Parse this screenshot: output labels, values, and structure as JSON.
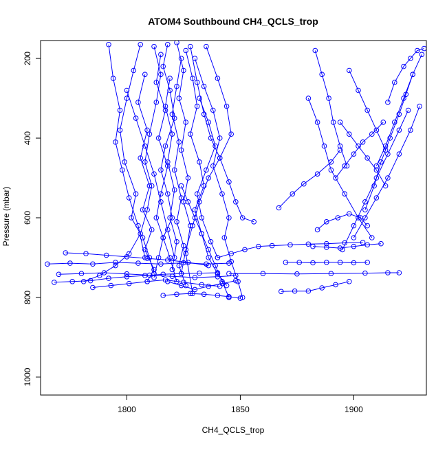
{
  "chart_data": {
    "type": "scatter",
    "title": "ATOM4 Southbound CH4_QCLS_trop",
    "xlabel": "CH4_QCLS_trop",
    "ylabel": "Pressure (mbar)",
    "xlim": [
      1762,
      1932
    ],
    "ylim": [
      1045,
      155
    ],
    "y_reversed": true,
    "x_ticks": [
      1800,
      1850,
      1900
    ],
    "y_ticks": [
      200,
      400,
      600,
      800,
      1000
    ],
    "grid": false,
    "legend": "none",
    "series_color": "#0000ff",
    "marker": "open-circle",
    "line": "connected",
    "series": [
      {
        "x": [
          1806,
          1803,
          1800,
          1797,
          1799,
          1804,
          1802,
          1807,
          1810,
          1812
        ],
        "y": [
          165,
          230,
          300,
          380,
          460,
          540,
          600,
          650,
          700,
          740
        ]
      },
      {
        "x": [
          1812,
          1815,
          1813,
          1810,
          1808,
          1811,
          1809,
          1806,
          1801,
          1795,
          1788,
          1781
        ],
        "y": [
          170,
          240,
          310,
          390,
          460,
          520,
          580,
          640,
          690,
          720,
          745,
          760
        ]
      },
      {
        "x": [
          1818,
          1816,
          1819,
          1821,
          1817,
          1815,
          1818,
          1820,
          1816,
          1819,
          1822
        ],
        "y": [
          165,
          220,
          280,
          350,
          420,
          480,
          540,
          600,
          650,
          700,
          760
        ]
      },
      {
        "x": [
          1822,
          1825,
          1823,
          1826,
          1824,
          1827,
          1825,
          1828,
          1826,
          1829
        ],
        "y": [
          160,
          230,
          300,
          360,
          430,
          500,
          560,
          620,
          690,
          790
        ]
      },
      {
        "x": [
          1826,
          1829,
          1831,
          1828,
          1832,
          1834,
          1830,
          1833,
          1836,
          1840,
          1844
        ],
        "y": [
          180,
          250,
          320,
          390,
          460,
          520,
          580,
          640,
          700,
          740,
          770
        ]
      },
      {
        "x": [
          1830,
          1834,
          1838,
          1841,
          1838,
          1842,
          1845,
          1843,
          1846,
          1849,
          1851
        ],
        "y": [
          200,
          270,
          330,
          400,
          470,
          540,
          600,
          650,
          710,
          760,
          800
        ]
      },
      {
        "x": [
          1835,
          1840,
          1844,
          1846,
          1841,
          1836,
          1832,
          1829,
          1826,
          1824
        ],
        "y": [
          170,
          250,
          320,
          390,
          450,
          500,
          560,
          620,
          680,
          740
        ]
      },
      {
        "x": [
          1815,
          1813,
          1817,
          1814,
          1818,
          1815,
          1813,
          1816,
          1814,
          1812
        ],
        "y": [
          190,
          260,
          330,
          400,
          470,
          540,
          600,
          650,
          700,
          750
        ]
      },
      {
        "x": [
          1824,
          1822,
          1820,
          1823,
          1821,
          1824,
          1822,
          1825,
          1823,
          1826
        ],
        "y": [
          200,
          270,
          340,
          410,
          480,
          550,
          610,
          670,
          720,
          770
        ]
      },
      {
        "x": [
          1808,
          1805,
          1809,
          1806,
          1810,
          1807,
          1811,
          1808,
          1812,
          1809
        ],
        "y": [
          240,
          310,
          380,
          450,
          520,
          580,
          630,
          680,
          730,
          760
        ]
      },
      {
        "x": [
          1792,
          1794,
          1797,
          1795,
          1798,
          1801,
          1805,
          1808
        ],
        "y": [
          165,
          250,
          330,
          410,
          480,
          550,
          620,
          700
        ]
      },
      {
        "x": [
          1828,
          1831,
          1834,
          1837,
          1841,
          1845,
          1848,
          1851,
          1856
        ],
        "y": [
          170,
          260,
          340,
          400,
          450,
          510,
          560,
          600,
          610
        ]
      },
      {
        "x": [
          1819,
          1817,
          1820,
          1818,
          1821,
          1819,
          1822,
          1820
        ],
        "y": [
          250,
          320,
          390,
          460,
          530,
          600,
          660,
          730
        ]
      },
      {
        "x": [
          1832,
          1836,
          1839,
          1835,
          1831,
          1833,
          1837,
          1840
        ],
        "y": [
          300,
          360,
          420,
          480,
          540,
          600,
          660,
          700
        ]
      },
      {
        "x": [
          1800,
          1804,
          1808,
          1812,
          1815,
          1818,
          1821
        ],
        "y": [
          280,
          350,
          420,
          490,
          560,
          630,
          700
        ]
      },
      {
        "x": [
          1824,
          1827,
          1830,
          1833,
          1836,
          1839,
          1842,
          1845
        ],
        "y": [
          520,
          560,
          600,
          640,
          680,
          720,
          760,
          800
        ]
      },
      {
        "x": [
          1765,
          1775,
          1785,
          1795,
          1805,
          1815,
          1825,
          1835,
          1845
        ],
        "y": [
          716,
          714,
          716,
          712,
          714,
          716,
          713,
          716,
          714
        ]
      },
      {
        "x": [
          1768,
          1776,
          1784,
          1792,
          1800,
          1808,
          1816,
          1824,
          1832,
          1840
        ],
        "y": [
          762,
          760,
          758,
          752,
          748,
          745,
          742,
          740,
          739,
          738
        ]
      },
      {
        "x": [
          1770,
          1780,
          1790,
          1800,
          1810,
          1820,
          1830,
          1840,
          1848
        ],
        "y": [
          742,
          740,
          738,
          741,
          744,
          747,
          750,
          748,
          745
        ]
      },
      {
        "x": [
          1773,
          1782,
          1791,
          1800,
          1809,
          1818,
          1827,
          1836
        ],
        "y": [
          688,
          690,
          694,
          698,
          702,
          706,
          712,
          720
        ]
      },
      {
        "x": [
          1785,
          1793,
          1801,
          1809,
          1817,
          1825,
          1833,
          1841
        ],
        "y": [
          775,
          770,
          765,
          760,
          756,
          762,
          768,
          772
        ]
      },
      {
        "x": [
          1816,
          1822,
          1828,
          1834,
          1840,
          1845,
          1850
        ],
        "y": [
          795,
          792,
          790,
          792,
          795,
          798,
          802
        ]
      },
      {
        "x": [
          1818,
          1824,
          1830,
          1836,
          1842,
          1848
        ],
        "y": [
          760,
          770,
          780,
          772,
          765,
          758
        ]
      },
      {
        "x": [
          1840,
          1846,
          1852,
          1858,
          1864,
          1872,
          1880,
          1888,
          1896,
          1904
        ],
        "y": [
          700,
          690,
          680,
          672,
          670,
          668,
          666,
          665,
          663,
          662
        ]
      },
      {
        "x": [
          1845,
          1860,
          1875,
          1890,
          1905,
          1915,
          1920
        ],
        "y": [
          740,
          740,
          741,
          740,
          739,
          738,
          738
        ]
      },
      {
        "x": [
          1870,
          1876,
          1882,
          1888,
          1894,
          1900,
          1906
        ],
        "y": [
          712,
          712,
          713,
          712,
          712,
          713,
          712
        ]
      },
      {
        "x": [
          1868,
          1874,
          1880,
          1886,
          1892,
          1898
        ],
        "y": [
          785,
          784,
          784,
          776,
          768,
          760
        ]
      },
      {
        "x": [
          1882,
          1888,
          1894,
          1900,
          1906,
          1912
        ],
        "y": [
          672,
          674,
          676,
          672,
          668,
          665
        ]
      },
      {
        "x": [
          1867,
          1873,
          1878,
          1884,
          1890,
          1894
        ],
        "y": [
          575,
          540,
          515,
          490,
          460,
          430
        ]
      },
      {
        "x": [
          1892,
          1896,
          1900,
          1904,
          1908,
          1913
        ],
        "y": [
          500,
          470,
          440,
          410,
          390,
          360
        ]
      },
      {
        "x": [
          1880,
          1884,
          1887,
          1890,
          1896,
          1902,
          1908
        ],
        "y": [
          300,
          360,
          420,
          480,
          540,
          600,
          650
        ]
      },
      {
        "x": [
          1883,
          1886,
          1889,
          1891,
          1894,
          1897
        ],
        "y": [
          180,
          240,
          300,
          360,
          420,
          470
        ]
      },
      {
        "x": [
          1900,
          1905,
          1910,
          1915,
          1920,
          1925,
          1929
        ],
        "y": [
          650,
          600,
          550,
          500,
          440,
          380,
          320
        ]
      },
      {
        "x": [
          1910,
          1914,
          1918,
          1922,
          1926,
          1930
        ],
        "y": [
          470,
          420,
          360,
          300,
          240,
          190
        ]
      },
      {
        "x": [
          1895,
          1900,
          1905,
          1910,
          1915,
          1920,
          1924
        ],
        "y": [
          680,
          620,
          560,
          500,
          440,
          380,
          330
        ]
      },
      {
        "x": [
          1905,
          1909,
          1912,
          1916,
          1920,
          1923,
          1926
        ],
        "y": [
          580,
          520,
          460,
          400,
          340,
          290,
          240
        ]
      },
      {
        "x": [
          1894,
          1898,
          1902,
          1906,
          1910,
          1914
        ],
        "y": [
          360,
          390,
          420,
          450,
          480,
          520
        ]
      },
      {
        "x": [
          1915,
          1918,
          1922,
          1925,
          1928,
          1931
        ],
        "y": [
          310,
          260,
          220,
          200,
          180,
          175
        ]
      },
      {
        "x": [
          1884,
          1888,
          1893,
          1898,
          1903,
          1906
        ],
        "y": [
          630,
          610,
          600,
          590,
          600,
          620
        ]
      },
      {
        "x": [
          1898,
          1902,
          1906,
          1910,
          1914
        ],
        "y": [
          230,
          280,
          330,
          380,
          430
        ]
      }
    ]
  }
}
